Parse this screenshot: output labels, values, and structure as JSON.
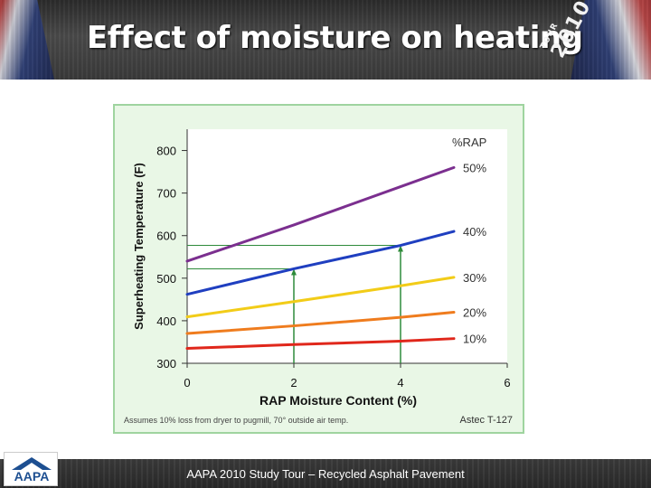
{
  "slide": {
    "title": "Effect of moisture on heating",
    "footer": "AAPA 2010 Study Tour – Recycled Asphalt Pavement",
    "logo_text": "AAPA",
    "badge_small": "TOUR",
    "badge_large": "2010",
    "colors": {
      "header_bg": "#3a3a3a",
      "chart_border": "#9fd49f",
      "chart_bg": "#ffffff"
    }
  },
  "chart_data": {
    "type": "line",
    "title": "",
    "xlabel": "RAP Moisture Content (%)",
    "ylabel": "Superheating Temperature (F)",
    "xlim": [
      0,
      6
    ],
    "ylim": [
      300,
      850
    ],
    "x_ticks": [
      "0",
      "2",
      "4",
      "6"
    ],
    "y_ticks": [
      "300",
      "400",
      "500",
      "600",
      "700",
      "800"
    ],
    "legend_title": "%RAP",
    "series": [
      {
        "name": "50%",
        "color": "#7b2f8f",
        "x": [
          0,
          2,
          4,
          5
        ],
        "y": [
          540,
          625,
          715,
          760
        ]
      },
      {
        "name": "40%",
        "color": "#1f3fc0",
        "x": [
          0,
          2,
          4,
          5
        ],
        "y": [
          462,
          522,
          577,
          610
        ]
      },
      {
        "name": "30%",
        "color": "#f2cc18",
        "x": [
          0,
          2,
          4,
          5
        ],
        "y": [
          409,
          445,
          482,
          502
        ]
      },
      {
        "name": "20%",
        "color": "#ef7c1e",
        "x": [
          0,
          2,
          4,
          5
        ],
        "y": [
          370,
          388,
          408,
          420
        ]
      },
      {
        "name": "10%",
        "color": "#e0271b",
        "x": [
          0,
          2,
          4,
          5
        ],
        "y": [
          335,
          344,
          352,
          358
        ]
      }
    ],
    "guides": [
      {
        "x": 2,
        "y": 522,
        "color": "#2e8b3a"
      },
      {
        "x": 4,
        "y": 577,
        "color": "#2e8b3a"
      }
    ],
    "footnote_left": "Assumes 10% loss from dryer to pugmill, 70° outside air temp.",
    "footnote_right": "Astec T-127"
  }
}
